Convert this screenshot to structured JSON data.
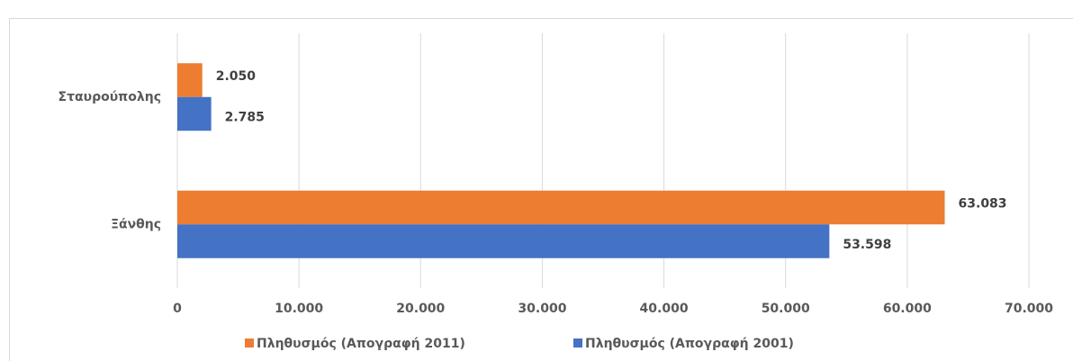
{
  "chart_data": {
    "type": "bar",
    "orientation": "horizontal",
    "categories": [
      "Σταυρούπολης",
      "Ξάνθης"
    ],
    "series": [
      {
        "name": "Πληθυσμός (Απογραφή 2011)",
        "color": "#ed7d31",
        "values": [
          2050,
          63083
        ],
        "value_labels": [
          "2.050",
          "63.083"
        ]
      },
      {
        "name": "Πληθυσμός (Απογραφή 2001)",
        "color": "#4472c4",
        "values": [
          2785,
          53598
        ],
        "value_labels": [
          "2.785",
          "53.598"
        ]
      }
    ],
    "xlim": [
      0,
      70000
    ],
    "xticks": [
      0,
      {
        "value": 10000,
        "label": "10.000"
      },
      {
        "value": 20000,
        "label": "20.000"
      },
      {
        "value": 30000,
        "label": "30.000"
      },
      {
        "value": 40000,
        "label": "40.000"
      },
      {
        "value": 50000,
        "label": "50.000"
      },
      {
        "value": 60000,
        "label": "60.000"
      },
      {
        "value": 70000,
        "label": "70.000"
      }
    ],
    "grid": true,
    "legend": "bottom"
  }
}
